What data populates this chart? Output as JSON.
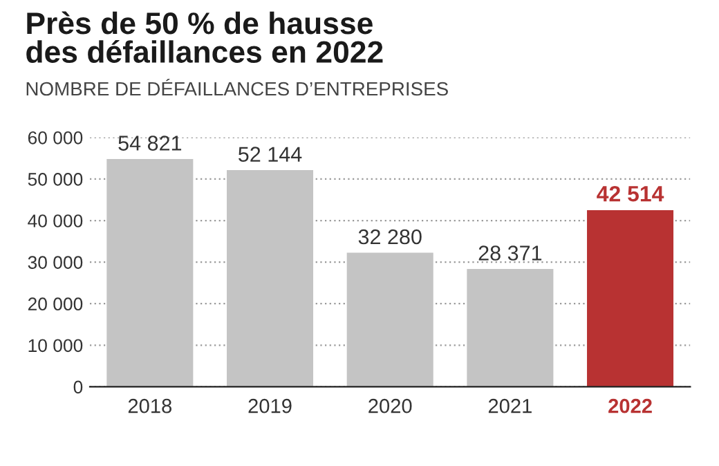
{
  "chart_data": {
    "type": "bar",
    "title": "Près de 50 % de hausse\ndes défaillances en 2022",
    "subtitle": "NOMBRE DE DÉFAILLANCES D’ENTREPRISES",
    "categories": [
      "2018",
      "2019",
      "2020",
      "2021",
      "2022"
    ],
    "values": [
      54821,
      52144,
      32280,
      28371,
      42514
    ],
    "value_labels": [
      "54 821",
      "52 144",
      "32 280",
      "28 371",
      "42 514"
    ],
    "colors": [
      "#c4c4c4",
      "#c4c4c4",
      "#c4c4c4",
      "#c4c4c4",
      "#b83232"
    ],
    "ylim": [
      0,
      60000
    ],
    "yticks": [
      0,
      {
        "value": 10000,
        "label": "10 000"
      },
      {
        "value": 20000,
        "label": "20 000"
      },
      {
        "value": 30000,
        "label": "30 000"
      },
      {
        "value": 40000,
        "label": "40 000"
      },
      {
        "value": 50000,
        "label": "50 000"
      },
      {
        "value": 60000,
        "label": "60 000"
      }
    ],
    "grid": "y"
  }
}
